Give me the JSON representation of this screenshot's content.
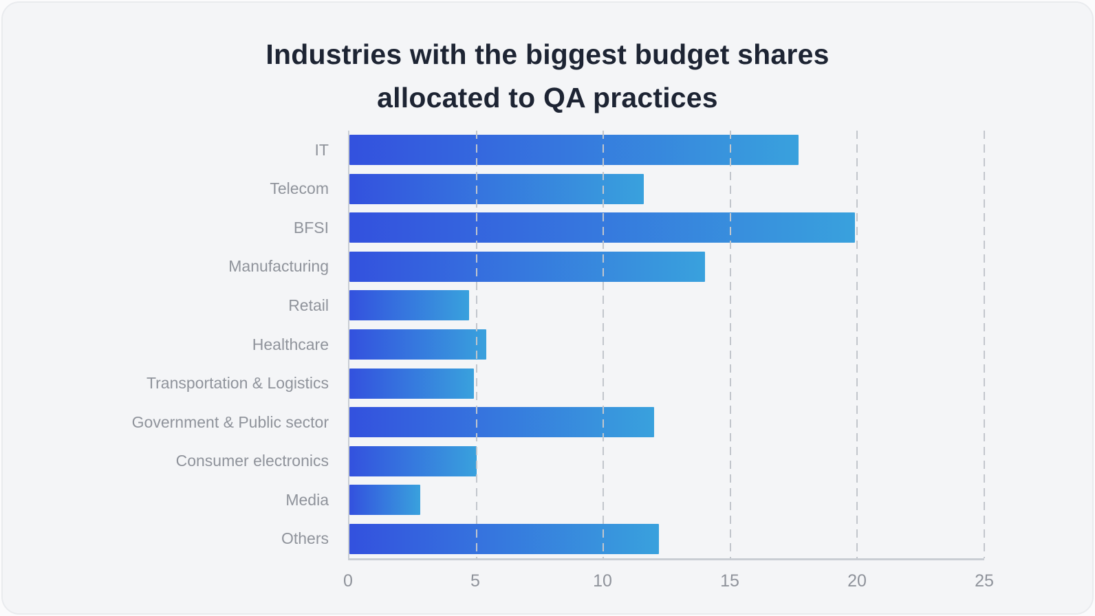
{
  "title": {
    "text": "Industries with the biggest budget shares allocated to QA practices",
    "lines": [
      "Industries with the biggest budget shares",
      "allocated to QA practices"
    ]
  },
  "chart_data": {
    "type": "bar",
    "orientation": "horizontal",
    "title": "Industries with the biggest budget shares allocated to QA practices",
    "categories": [
      "IT",
      "Telecom",
      "BFSI",
      "Manufacturing",
      "Retail",
      "Healthcare",
      "Transportation & Logistics",
      "Government & Public sector",
      "Consumer electronics",
      "Media",
      "Others"
    ],
    "values": [
      17.7,
      11.6,
      19.9,
      14.0,
      4.7,
      5.4,
      4.9,
      12.0,
      5.0,
      2.8,
      12.2
    ],
    "xlabel": "",
    "ylabel": "",
    "xlim": [
      0,
      25
    ],
    "xticks": [
      0,
      5,
      10,
      15,
      20,
      25
    ],
    "grid": "dashed vertical gridlines at each x tick except 0",
    "legend": "none",
    "colors": {
      "bar_gradient_start": "#3351de",
      "bar_gradient_end": "#39a1dd",
      "axis": "#c9cdd3",
      "gridline": "#c2c6cc",
      "labels": "#8f939b",
      "title": "#1d2433",
      "background": "#f4f5f7"
    }
  }
}
